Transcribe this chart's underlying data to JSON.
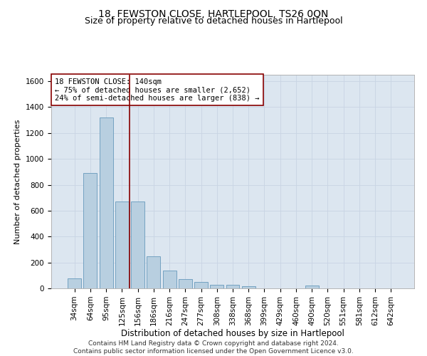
{
  "title": "18, FEWSTON CLOSE, HARTLEPOOL, TS26 0QN",
  "subtitle": "Size of property relative to detached houses in Hartlepool",
  "xlabel": "Distribution of detached houses by size in Hartlepool",
  "ylabel": "Number of detached properties",
  "categories": [
    "34sqm",
    "64sqm",
    "95sqm",
    "125sqm",
    "156sqm",
    "186sqm",
    "216sqm",
    "247sqm",
    "277sqm",
    "308sqm",
    "338sqm",
    "368sqm",
    "399sqm",
    "429sqm",
    "460sqm",
    "490sqm",
    "520sqm",
    "551sqm",
    "581sqm",
    "612sqm",
    "642sqm"
  ],
  "values": [
    75,
    893,
    1320,
    670,
    670,
    245,
    140,
    70,
    48,
    28,
    28,
    15,
    0,
    0,
    0,
    20,
    0,
    0,
    0,
    0,
    0
  ],
  "bar_color": "#b8cfe0",
  "bar_edge_color": "#6699bb",
  "vline_color": "#880000",
  "annotation_line1": "18 FEWSTON CLOSE: 140sqm",
  "annotation_line2": "← 75% of detached houses are smaller (2,652)",
  "annotation_line3": "24% of semi-detached houses are larger (838) →",
  "annotation_box_color": "#ffffff",
  "annotation_box_edge": "#880000",
  "ylim": [
    0,
    1650
  ],
  "yticks": [
    0,
    200,
    400,
    600,
    800,
    1000,
    1200,
    1400,
    1600
  ],
  "grid_color": "#c8d4e4",
  "bg_color": "#dce6f0",
  "footer": "Contains HM Land Registry data © Crown copyright and database right 2024.\nContains public sector information licensed under the Open Government Licence v3.0.",
  "title_fontsize": 10,
  "subtitle_fontsize": 9,
  "xlabel_fontsize": 8.5,
  "ylabel_fontsize": 8,
  "tick_fontsize": 7.5,
  "annotation_fontsize": 7.5,
  "footer_fontsize": 6.5
}
